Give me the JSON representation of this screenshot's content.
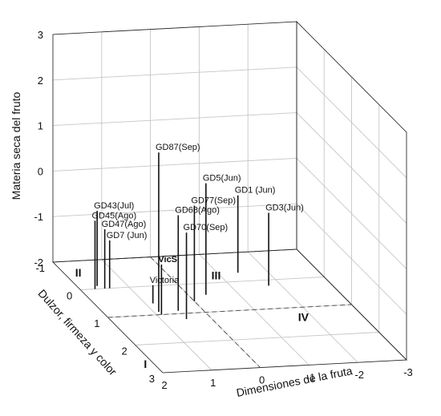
{
  "chart_data": {
    "type": "scatter3d-stem",
    "title": "",
    "xlabel": "Dimensiones de la fruta",
    "ylabel": "Dulzor, firmeza y color",
    "zlabel": "Materia seca del fruto",
    "xlim": [
      2,
      -3
    ],
    "ylim": [
      -1,
      3
    ],
    "zlim": [
      -2,
      3
    ],
    "x_ticks": [
      "2",
      "1",
      "0",
      "-1",
      "-2",
      "-3"
    ],
    "y_ticks": [
      "-1",
      "0",
      "1",
      "2",
      "3"
    ],
    "z_ticks": [
      "-2",
      "-1",
      "0",
      "1",
      "2",
      "3"
    ],
    "grid": true,
    "quadrant_labels": [
      "I",
      "II",
      "III",
      "IV"
    ],
    "points": [
      {
        "label": "GD43(Jul)",
        "x": 1.6,
        "y": -0.1,
        "z": -0.35
      },
      {
        "label": "GD47(Ago)",
        "x": 1.5,
        "y": 0.0,
        "z": -0.7
      },
      {
        "label": "GD45(Ago)",
        "x": 1.7,
        "y": 0.0,
        "z": -0.5
      },
      {
        "label": "GD7 (Jun)",
        "x": 1.4,
        "y": 0.0,
        "z": -0.95
      },
      {
        "label": "GD87(Sep)",
        "x": 0.9,
        "y": 0.9,
        "z": 1.5
      },
      {
        "label": "GD5(Jun)",
        "x": -0.35,
        "y": 0.4,
        "z": 0.45
      },
      {
        "label": "GD77(Sep)",
        "x": 0.0,
        "y": 0.6,
        "z": 0.1
      },
      {
        "label": "GD68(Ago)",
        "x": 0.5,
        "y": 0.9,
        "z": 0.1
      },
      {
        "label": "GD70(Sep)",
        "x": 0.5,
        "y": 1.2,
        "z": -0.1
      },
      {
        "label": "GD1 (Jun)",
        "x": -1.4,
        "y": -0.3,
        "z": -0.3
      },
      {
        "label": "GD3(Jun)",
        "x": -1.75,
        "y": 0.2,
        "z": -0.4
      },
      {
        "label": "VicS",
        "x": 0.9,
        "y": 1.0,
        "z": -0.9
      },
      {
        "label": "Victoria",
        "x": 0.85,
        "y": 0.6,
        "z": -1.6
      }
    ],
    "bold_labels": [
      "VicS"
    ]
  }
}
